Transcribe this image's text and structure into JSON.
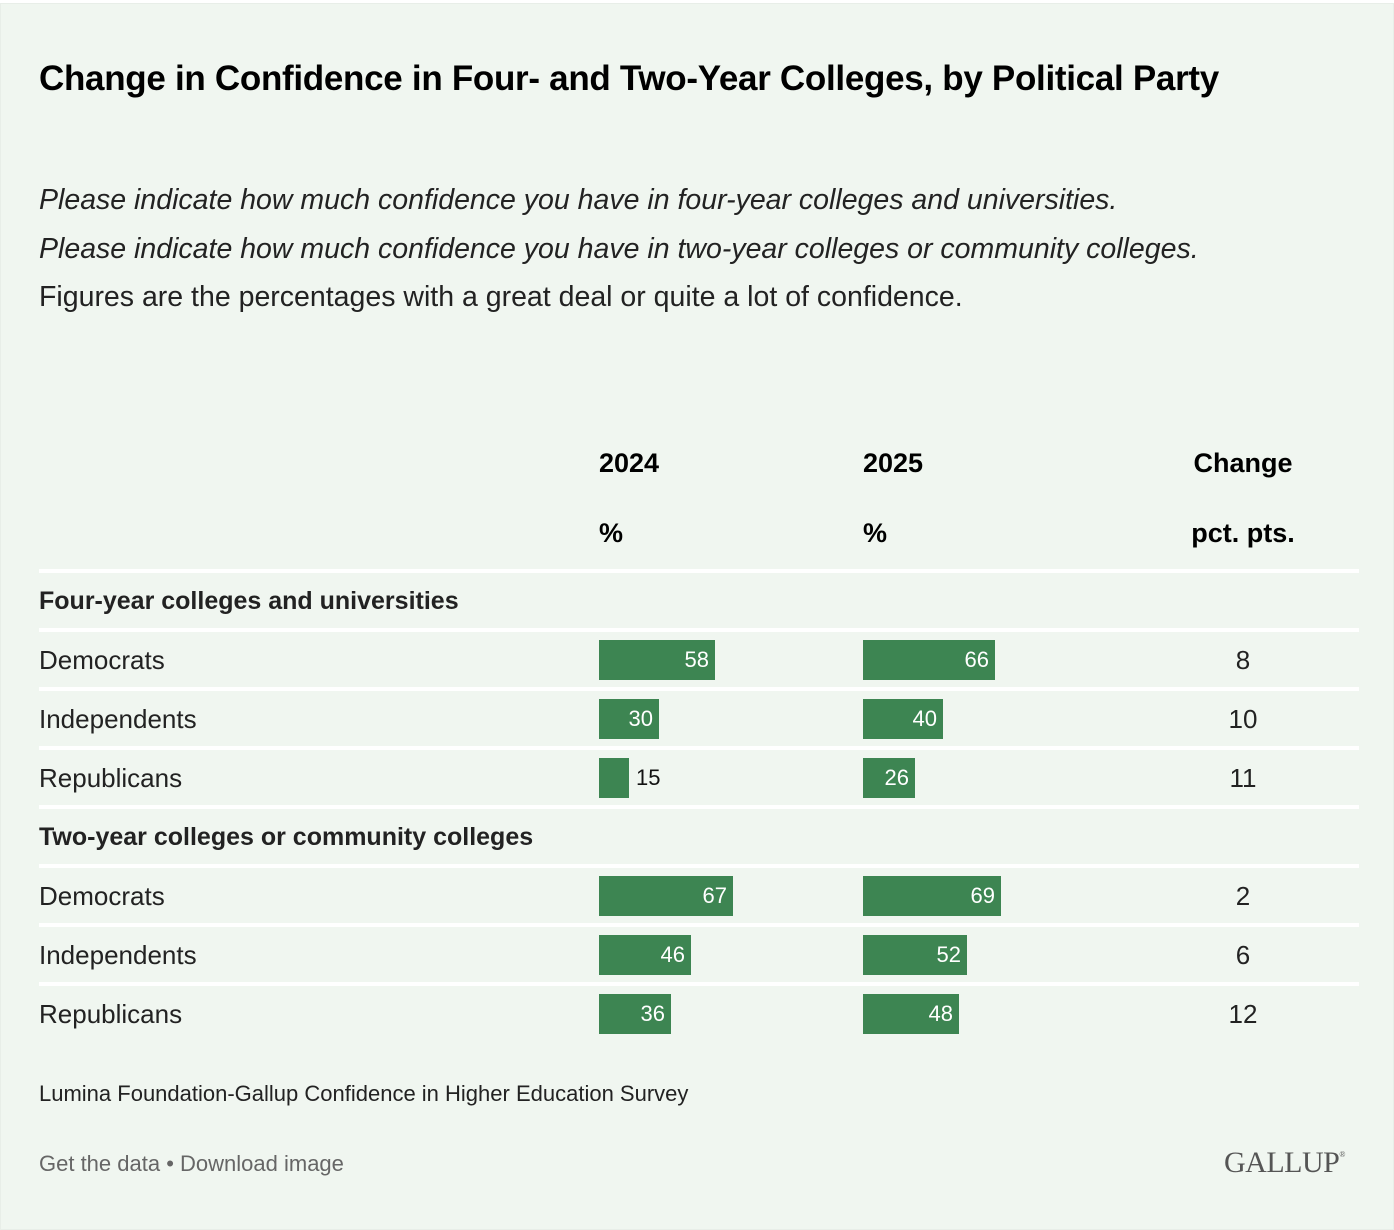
{
  "title": "Change in Confidence in Four- and Two-Year Colleges, by Political Party",
  "subtitle": {
    "question_1": "Please indicate how much confidence you have in four-year colleges and universities.",
    "question_2": "Please indicate how much confidence you have in two-year colleges or community colleges.",
    "note": "Figures are the percentages with a great deal or quite a lot of confidence."
  },
  "columns": {
    "col_2024": {
      "label": "2024",
      "unit": "%"
    },
    "col_2025": {
      "label": "2025",
      "unit": "%"
    },
    "col_change": {
      "label": "Change",
      "unit": "pct. pts."
    }
  },
  "colors": {
    "bar": "#3d8552",
    "background": "#f0f6f0",
    "divider": "#ffffff"
  },
  "chart_data": {
    "type": "table",
    "title": "Change in Confidence in Four- and Two-Year Colleges, by Political Party",
    "columns": [
      "2024 (%)",
      "2025 (%)",
      "Change (pct. pts.)"
    ],
    "groups": [
      {
        "label": "Four-year colleges and universities",
        "rows": [
          {
            "label": "Democrats",
            "v2024": 58,
            "v2025": 66,
            "change": 8
          },
          {
            "label": "Independents",
            "v2024": 30,
            "v2025": 40,
            "change": 10
          },
          {
            "label": "Republicans",
            "v2024": 15,
            "v2025": 26,
            "change": 11
          }
        ]
      },
      {
        "label": "Two-year colleges or community colleges",
        "rows": [
          {
            "label": "Democrats",
            "v2024": 67,
            "v2025": 69,
            "change": 2
          },
          {
            "label": "Independents",
            "v2024": 46,
            "v2025": 52,
            "change": 6
          },
          {
            "label": "Republicans",
            "v2024": 36,
            "v2025": 48,
            "change": 12
          }
        ]
      }
    ],
    "xlim": [
      0,
      100
    ]
  },
  "footer": {
    "source": "Lumina Foundation-Gallup Confidence in Higher Education Survey",
    "get_data": "Get the data",
    "separator": " • ",
    "download": "Download image",
    "logo": "GALLUP",
    "logo_mark": "®"
  }
}
